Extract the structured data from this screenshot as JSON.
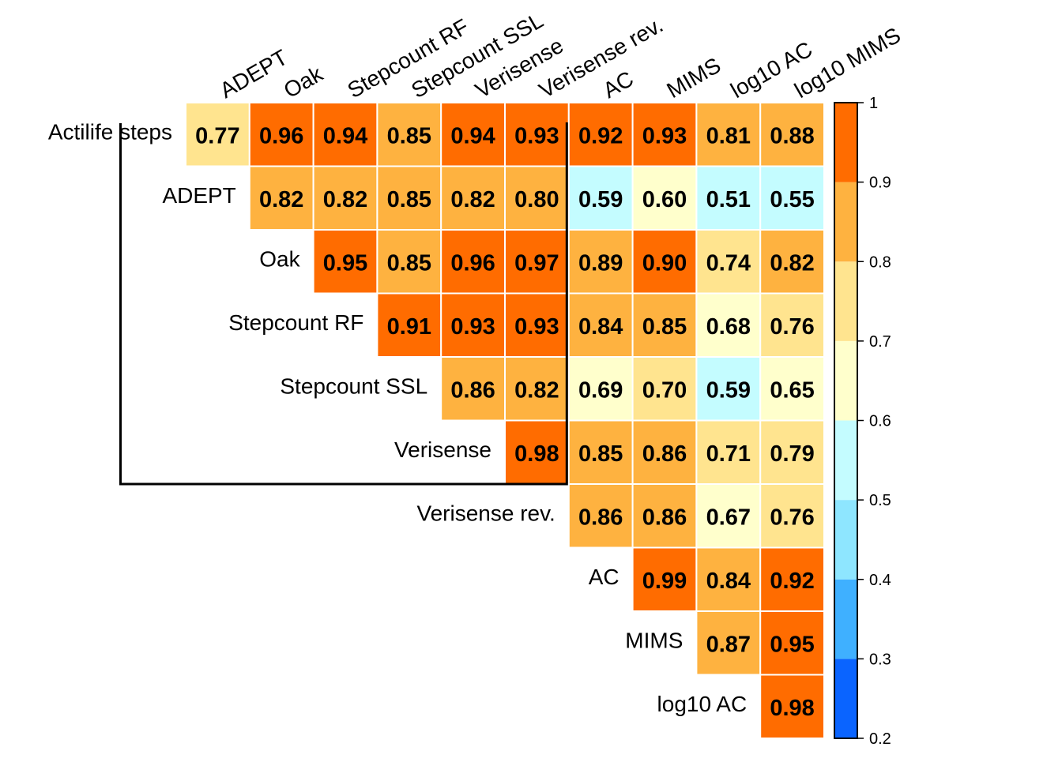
{
  "chart_data": {
    "type": "heatmap",
    "layout": "upper-triangular correlation matrix",
    "column_labels": [
      "ADEPT",
      "Oak",
      "Stepcount RF",
      "Stepcount SSL",
      "Verisense",
      "Verisense rev.",
      "AC",
      "MIMS",
      "log10 AC",
      "log10 MIMS"
    ],
    "row_labels": [
      "Actilife steps",
      "ADEPT",
      "Oak",
      "Stepcount RF",
      "Stepcount SSL",
      "Verisense",
      "Verisense rev.",
      "AC",
      "MIMS",
      "log10 AC"
    ],
    "rows": [
      {
        "label": "Actilife steps",
        "start_col": 0,
        "values": [
          0.77,
          0.96,
          0.94,
          0.85,
          0.94,
          0.93,
          0.92,
          0.93,
          0.81,
          0.88
        ]
      },
      {
        "label": "ADEPT",
        "start_col": 1,
        "values": [
          0.82,
          0.82,
          0.85,
          0.82,
          0.8,
          0.59,
          0.6,
          0.51,
          0.55
        ]
      },
      {
        "label": "Oak",
        "start_col": 2,
        "values": [
          0.95,
          0.85,
          0.96,
          0.97,
          0.89,
          0.9,
          0.74,
          0.82
        ]
      },
      {
        "label": "Stepcount RF",
        "start_col": 3,
        "values": [
          0.91,
          0.93,
          0.93,
          0.84,
          0.85,
          0.68,
          0.76
        ]
      },
      {
        "label": "Stepcount SSL",
        "start_col": 4,
        "values": [
          0.86,
          0.82,
          0.69,
          0.7,
          0.59,
          0.65
        ]
      },
      {
        "label": "Verisense",
        "start_col": 5,
        "values": [
          0.98,
          0.85,
          0.86,
          0.71,
          0.79
        ]
      },
      {
        "label": "Verisense rev.",
        "start_col": 6,
        "values": [
          0.86,
          0.86,
          0.67,
          0.76
        ]
      },
      {
        "label": "AC",
        "start_col": 7,
        "values": [
          0.99,
          0.84,
          0.92
        ]
      },
      {
        "label": "MIMS",
        "start_col": 8,
        "values": [
          0.87,
          0.95
        ]
      },
      {
        "label": "log10 AC",
        "start_col": 9,
        "values": [
          0.98
        ]
      }
    ],
    "color_scale": {
      "breaks": [
        0.2,
        0.3,
        0.4,
        0.5,
        0.6,
        0.7,
        0.8,
        0.9,
        1
      ],
      "colors": [
        "#0A64FF",
        "#3FB0FF",
        "#8EE6FF",
        "#C4FCFF",
        "#FFFFCC",
        "#FFE48F",
        "#FEB240",
        "#FF6C00"
      ],
      "tick_labels": [
        "1",
        "0.9",
        "0.8",
        "0.7",
        "0.6",
        "0.5",
        "0.4",
        "0.3",
        "0.2"
      ]
    },
    "highlight_box": {
      "from_row": "Actilife steps",
      "to_row": "Verisense",
      "from_col": "ADEPT",
      "to_col": "Verisense rev."
    },
    "legend_placement": "right",
    "grid": true
  }
}
